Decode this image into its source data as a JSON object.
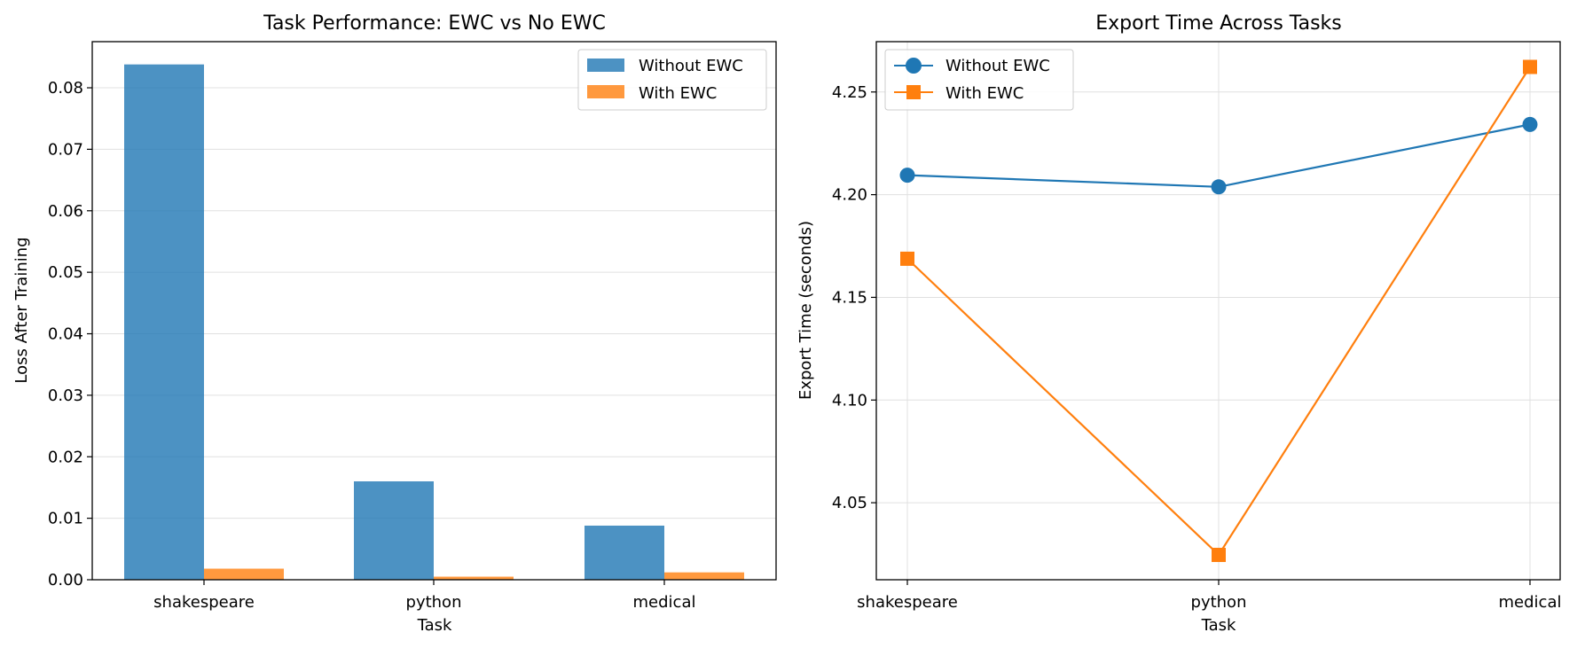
{
  "colors": {
    "blue": "#1f77b4",
    "orange": "#ff7f0e",
    "grid": "#e0e0e0"
  },
  "chart_data": [
    {
      "type": "bar",
      "title": "Task Performance: EWC vs No EWC",
      "xlabel": "Task",
      "ylabel": "Loss After Training",
      "categories": [
        "shakespeare",
        "python",
        "medical"
      ],
      "series": [
        {
          "name": "Without EWC",
          "values": [
            0.0838,
            0.016,
            0.0088
          ]
        },
        {
          "name": "With EWC",
          "values": [
            0.0018,
            0.0005,
            0.0012
          ]
        }
      ],
      "ylim": [
        0,
        0.0875
      ],
      "yticks": [
        0.0,
        0.01,
        0.02,
        0.03,
        0.04,
        0.05,
        0.06,
        0.07,
        0.08
      ],
      "ytick_labels": [
        "0.00",
        "0.01",
        "0.02",
        "0.03",
        "0.04",
        "0.05",
        "0.06",
        "0.07",
        "0.08"
      ],
      "grid": true,
      "legend": "top-right"
    },
    {
      "type": "line",
      "title": "Export Time Across Tasks",
      "xlabel": "Task",
      "ylabel": "Export Time (seconds)",
      "categories": [
        "shakespeare",
        "python",
        "medical"
      ],
      "series": [
        {
          "name": "Without EWC",
          "marker": "circle",
          "values": [
            4.2095,
            4.2038,
            4.2342
          ]
        },
        {
          "name": "With EWC",
          "marker": "square",
          "values": [
            4.1688,
            4.0246,
            4.2622
          ]
        }
      ],
      "ylim": [
        4.0125,
        4.2745
      ],
      "yticks": [
        4.05,
        4.1,
        4.15,
        4.2,
        4.25
      ],
      "ytick_labels": [
        "4.05",
        "4.10",
        "4.15",
        "4.20",
        "4.25"
      ],
      "grid": true,
      "legend": "top-left"
    }
  ]
}
